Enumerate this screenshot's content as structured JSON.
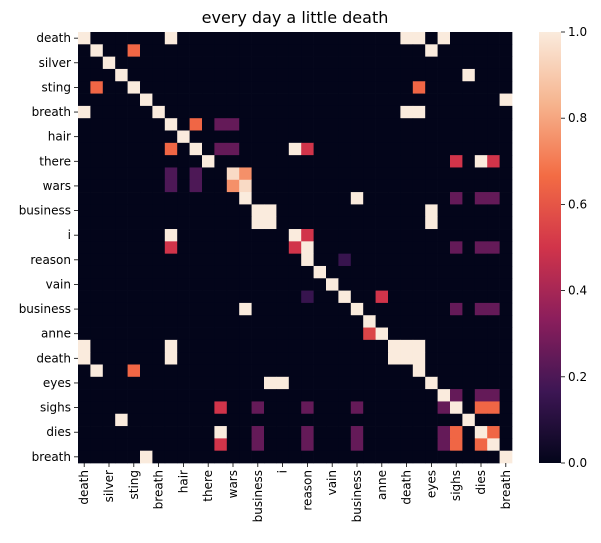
{
  "chart_data": {
    "type": "heatmap",
    "title": "every day a little death",
    "labels": [
      "death",
      "?",
      "silver",
      "?",
      "sting",
      "?",
      "breath",
      "?",
      "hair",
      "?",
      "there",
      "?",
      "wars",
      "?",
      "business",
      "?",
      "i",
      "?",
      "reason",
      "?",
      "vain",
      "?",
      "business",
      "?",
      "anne",
      "?",
      "death",
      "?",
      "eyes",
      "?",
      "sighs",
      "?",
      "dies",
      "?",
      "breath"
    ],
    "x_tick_labels": [
      "death",
      "silver",
      "sting",
      "breath",
      "hair",
      "there",
      "wars",
      "business",
      "i",
      "reason",
      "vain",
      "business",
      "anne",
      "death",
      "eyes",
      "sighs",
      "dies",
      "breath"
    ],
    "y_tick_labels": [
      "death",
      "silver",
      "sting",
      "breath",
      "hair",
      "there",
      "wars",
      "business",
      "i",
      "reason",
      "vain",
      "business",
      "anne",
      "death",
      "eyes",
      "sighs",
      "dies",
      "breath"
    ],
    "colorbar": {
      "min": 0.0,
      "max": 1.0,
      "ticks": [
        "0.0",
        "0.2",
        "0.4",
        "0.6",
        "0.8",
        "1.0"
      ]
    },
    "colormap": [
      "#03051a",
      "#3d1654",
      "#8b1e5c",
      "#d1344a",
      "#f36c44",
      "#f6b48e",
      "#faebdd"
    ],
    "cells": [
      [
        0,
        0,
        1
      ],
      [
        0,
        7,
        1
      ],
      [
        0,
        26,
        1
      ],
      [
        0,
        27,
        1
      ],
      [
        0,
        29,
        1
      ],
      [
        0,
        34,
        0
      ],
      [
        1,
        1,
        1
      ],
      [
        1,
        4,
        0.65
      ],
      [
        1,
        28,
        1
      ],
      [
        2,
        2,
        1
      ],
      [
        3,
        3,
        1
      ],
      [
        3,
        31,
        1
      ],
      [
        4,
        1,
        0.65
      ],
      [
        4,
        4,
        1
      ],
      [
        4,
        27,
        0.65
      ],
      [
        5,
        5,
        1
      ],
      [
        5,
        34,
        1
      ],
      [
        6,
        0,
        1
      ],
      [
        6,
        6,
        1
      ],
      [
        6,
        26,
        1
      ],
      [
        6,
        27,
        1
      ],
      [
        7,
        7,
        1
      ],
      [
        7,
        9,
        0.65
      ],
      [
        7,
        11,
        0.25
      ],
      [
        7,
        12,
        0.25
      ],
      [
        8,
        8,
        1
      ],
      [
        9,
        7,
        0.65
      ],
      [
        9,
        9,
        1
      ],
      [
        9,
        11,
        0.25
      ],
      [
        9,
        12,
        0.25
      ],
      [
        9,
        17,
        1
      ],
      [
        9,
        18,
        0.5
      ],
      [
        10,
        10,
        1
      ],
      [
        10,
        30,
        0.5
      ],
      [
        10,
        32,
        1
      ],
      [
        10,
        33,
        0.5
      ],
      [
        11,
        7,
        0.2
      ],
      [
        11,
        9,
        0.2
      ],
      [
        11,
        12,
        0.95
      ],
      [
        11,
        13,
        0.75
      ],
      [
        12,
        7,
        0.2
      ],
      [
        12,
        9,
        0.2
      ],
      [
        12,
        12,
        0.75
      ],
      [
        12,
        13,
        0.95
      ],
      [
        13,
        13,
        1
      ],
      [
        13,
        22,
        1
      ],
      [
        13,
        30,
        0.25
      ],
      [
        13,
        32,
        0.25
      ],
      [
        13,
        33,
        0.25
      ],
      [
        14,
        14,
        1
      ],
      [
        14,
        15,
        1
      ],
      [
        14,
        28,
        1
      ],
      [
        15,
        14,
        1
      ],
      [
        15,
        15,
        1
      ],
      [
        15,
        28,
        1
      ],
      [
        16,
        7,
        1
      ],
      [
        16,
        17,
        1
      ],
      [
        16,
        18,
        0.5
      ],
      [
        17,
        7,
        0.5
      ],
      [
        17,
        17,
        0.5
      ],
      [
        17,
        18,
        1
      ],
      [
        17,
        30,
        0.25
      ],
      [
        17,
        32,
        0.25
      ],
      [
        17,
        33,
        0.25
      ],
      [
        18,
        18,
        1
      ],
      [
        18,
        21,
        0.15
      ],
      [
        19,
        19,
        1
      ],
      [
        20,
        20,
        1
      ],
      [
        21,
        18,
        0.15
      ],
      [
        21,
        21,
        1
      ],
      [
        21,
        24,
        0.5
      ],
      [
        22,
        13,
        1
      ],
      [
        22,
        22,
        1
      ],
      [
        22,
        30,
        0.25
      ],
      [
        22,
        32,
        0.25
      ],
      [
        22,
        33,
        0.25
      ],
      [
        23,
        23,
        1
      ],
      [
        24,
        23,
        0.55
      ],
      [
        24,
        24,
        1
      ],
      [
        25,
        0,
        1
      ],
      [
        25,
        7,
        1
      ],
      [
        25,
        25,
        1
      ],
      [
        25,
        26,
        1
      ],
      [
        25,
        27,
        1
      ],
      [
        26,
        0,
        1
      ],
      [
        26,
        7,
        1
      ],
      [
        26,
        25,
        1
      ],
      [
        26,
        26,
        1
      ],
      [
        26,
        27,
        1
      ],
      [
        27,
        1,
        1
      ],
      [
        27,
        4,
        0.65
      ],
      [
        27,
        27,
        1
      ],
      [
        28,
        15,
        1
      ],
      [
        28,
        16,
        1
      ],
      [
        28,
        28,
        1
      ],
      [
        29,
        29,
        1
      ],
      [
        29,
        30,
        0.25
      ],
      [
        29,
        32,
        0.25
      ],
      [
        29,
        33,
        0.25
      ],
      [
        30,
        11,
        0.5
      ],
      [
        30,
        14,
        0.25
      ],
      [
        30,
        18,
        0.25
      ],
      [
        30,
        22,
        0.25
      ],
      [
        30,
        29,
        0.25
      ],
      [
        30,
        30,
        1
      ],
      [
        30,
        32,
        0.65
      ],
      [
        30,
        33,
        0.65
      ],
      [
        31,
        3,
        1
      ],
      [
        31,
        31,
        1
      ],
      [
        32,
        11,
        1
      ],
      [
        32,
        14,
        0.25
      ],
      [
        32,
        18,
        0.25
      ],
      [
        32,
        22,
        0.25
      ],
      [
        32,
        29,
        0.25
      ],
      [
        32,
        30,
        0.65
      ],
      [
        32,
        32,
        1
      ],
      [
        32,
        33,
        0.65
      ],
      [
        33,
        11,
        0.5
      ],
      [
        33,
        14,
        0.25
      ],
      [
        33,
        18,
        0.25
      ],
      [
        33,
        22,
        0.25
      ],
      [
        33,
        29,
        0.25
      ],
      [
        33,
        30,
        0.65
      ],
      [
        33,
        32,
        0.65
      ],
      [
        33,
        33,
        1
      ],
      [
        34,
        5,
        1
      ],
      [
        34,
        34,
        1
      ]
    ]
  }
}
